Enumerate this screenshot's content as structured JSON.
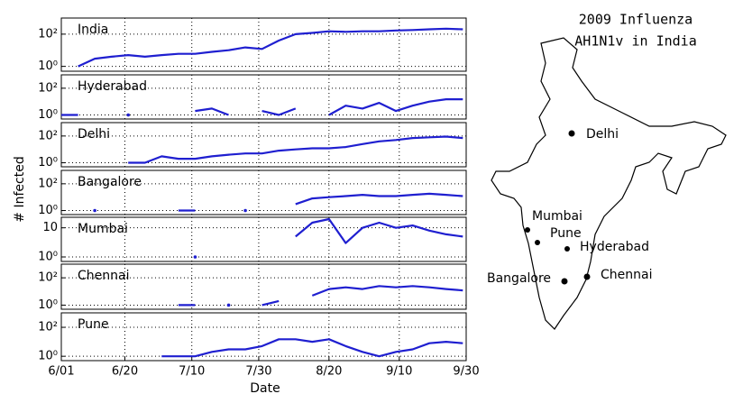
{
  "chart_data": {
    "type": "small_multiples",
    "xlabel": "Date",
    "ylabel": "# Infected",
    "x": [
      "6/01",
      "6/06",
      "6/11",
      "6/16",
      "6/21",
      "6/26",
      "7/01",
      "7/06",
      "7/11",
      "7/16",
      "7/21",
      "7/26",
      "7/31",
      "8/05",
      "8/10",
      "8/15",
      "8/20",
      "8/25",
      "8/30",
      "9/04",
      "9/09",
      "9/14",
      "9/19",
      "9/24",
      "9/29"
    ],
    "xlim": [
      "6/01",
      "9/30"
    ],
    "xticks": [
      "6/01",
      "6/20",
      "7/10",
      "7/30",
      "8/20",
      "9/10",
      "9/30"
    ],
    "panels": [
      {
        "type": "line",
        "title": "India",
        "color": "#1f1fd0",
        "log_y": true,
        "grid": true,
        "ylim": [
          0.5,
          1000
        ],
        "yticks": [
          {
            "value": 1,
            "label": "10⁰"
          },
          {
            "value": 100,
            "label": "10²"
          }
        ],
        "values": [
          null,
          1,
          3,
          4,
          5,
          4,
          5,
          6,
          6,
          8,
          10,
          15,
          12,
          40,
          100,
          120,
          150,
          140,
          150,
          150,
          170,
          180,
          200,
          220,
          200
        ]
      },
      {
        "type": "line",
        "title": "Hyderabad",
        "color": "#1f1fd0",
        "log_y": true,
        "grid": true,
        "ylim": [
          0.5,
          1000
        ],
        "yticks": [
          {
            "value": 1,
            "label": "10⁰"
          },
          {
            "value": 100,
            "label": "10²"
          }
        ],
        "values": [
          1,
          1,
          null,
          null,
          1,
          null,
          null,
          null,
          2,
          3,
          1,
          null,
          2,
          1,
          3,
          null,
          1,
          5,
          3,
          8,
          2,
          5,
          10,
          15,
          15
        ]
      },
      {
        "type": "line",
        "title": "Delhi",
        "color": "#1f1fd0",
        "log_y": true,
        "grid": true,
        "ylim": [
          0.5,
          1000
        ],
        "yticks": [
          {
            "value": 1,
            "label": "10⁰"
          },
          {
            "value": 100,
            "label": "10²"
          }
        ],
        "values": [
          null,
          null,
          null,
          null,
          1,
          1,
          3,
          2,
          2,
          3,
          4,
          5,
          5,
          8,
          10,
          12,
          12,
          15,
          25,
          40,
          50,
          70,
          80,
          90,
          70
        ]
      },
      {
        "type": "line",
        "title": "Bangalore",
        "color": "#1f1fd0",
        "log_y": true,
        "grid": true,
        "ylim": [
          0.5,
          1000
        ],
        "yticks": [
          {
            "value": 1,
            "label": "10⁰"
          },
          {
            "value": 100,
            "label": "10²"
          }
        ],
        "values": [
          null,
          null,
          1,
          null,
          null,
          null,
          null,
          1,
          1,
          null,
          null,
          1,
          null,
          null,
          3,
          8,
          10,
          12,
          15,
          12,
          12,
          15,
          18,
          15,
          12
        ]
      },
      {
        "type": "line",
        "title": "Mumbai",
        "color": "#1f1fd0",
        "log_y": true,
        "grid": true,
        "ylim": [
          0.7,
          23
        ],
        "yticks": [
          {
            "value": 1,
            "label": "10⁰"
          },
          10
        ],
        "values": [
          null,
          null,
          null,
          null,
          null,
          null,
          null,
          null,
          1,
          null,
          null,
          null,
          null,
          null,
          5,
          15,
          20,
          3,
          10,
          15,
          10,
          12,
          8,
          6,
          5
        ]
      },
      {
        "type": "line",
        "title": "Chennai",
        "color": "#1f1fd0",
        "log_y": true,
        "grid": true,
        "ylim": [
          0.5,
          1000
        ],
        "yticks": [
          {
            "value": 1,
            "label": "10⁰"
          },
          {
            "value": 100,
            "label": "10²"
          }
        ],
        "values": [
          null,
          null,
          null,
          null,
          null,
          null,
          null,
          1,
          1,
          null,
          1,
          null,
          1,
          2,
          null,
          5,
          15,
          20,
          15,
          25,
          20,
          25,
          20,
          15,
          12
        ]
      },
      {
        "type": "line",
        "title": "Pune",
        "color": "#1f1fd0",
        "log_y": true,
        "grid": true,
        "ylim": [
          0.5,
          1000
        ],
        "yticks": [
          {
            "value": 1,
            "label": "10⁰"
          },
          {
            "value": 100,
            "label": "10²"
          }
        ],
        "values": [
          null,
          null,
          null,
          null,
          null,
          null,
          1,
          1,
          1,
          2,
          3,
          3,
          5,
          15,
          15,
          10,
          15,
          5,
          2,
          1,
          2,
          3,
          8,
          10,
          8
        ]
      }
    ]
  },
  "map": {
    "title": [
      "2009 Influenza",
      "AH1N1v in India"
    ],
    "cities": [
      "Delhi",
      "Mumbai",
      "Pune",
      "Hyderabad",
      "Bangalore",
      "Chennai"
    ]
  }
}
